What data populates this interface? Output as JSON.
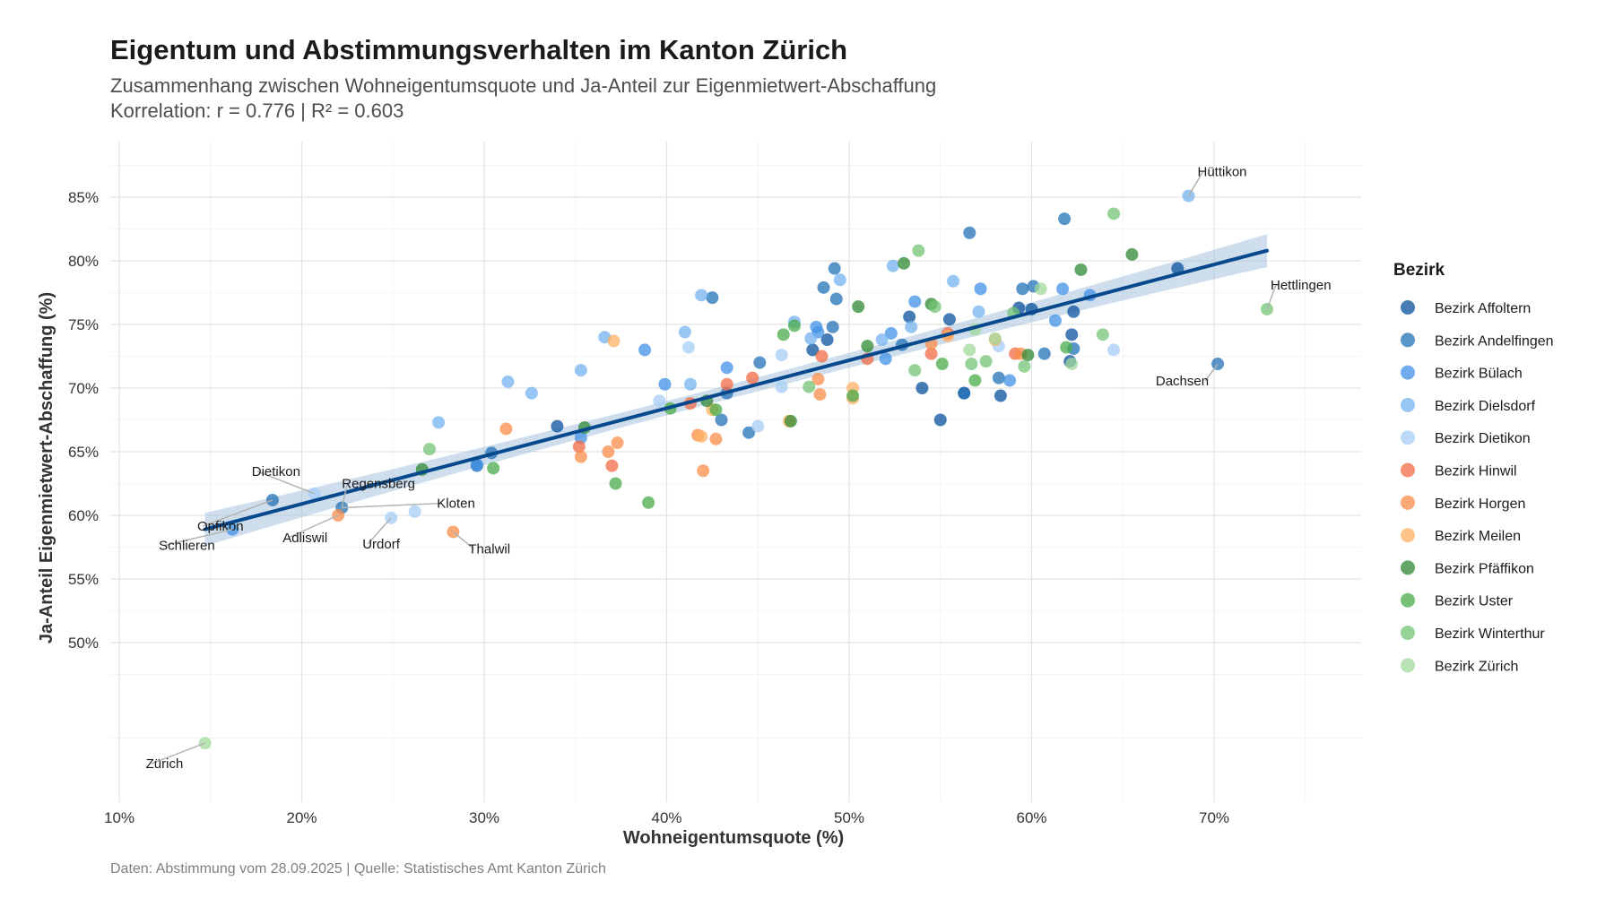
{
  "title": "Eigentum und Abstimmungsverhalten im Kanton Zürich",
  "subtitle_line1": "Zusammenhang zwischen Wohneigentumsquote und Ja-Anteil zur Eigenmietwert-Abschaffung",
  "subtitle_line2": "Korrelation: r = 0.776 | R² = 0.603",
  "caption": "Daten: Abstimmung vom 28.09.2025 | Quelle: Statistisches Amt Kanton Zürich",
  "chart_data": {
    "type": "scatter",
    "title": "Eigentum und Abstimmungsverhalten im Kanton Zürich",
    "xlabel": "Wohneigentumsquote (%)",
    "ylabel": "Ja-Anteil Eigenmietwert-Abschaffung (%)",
    "xlim": [
      9.5,
      78
    ],
    "ylim": [
      40,
      89
    ],
    "x_ticks": [
      10,
      20,
      30,
      40,
      50,
      60,
      70
    ],
    "x_tick_labels": [
      "10%",
      "20%",
      "30%",
      "40%",
      "50%",
      "60%",
      "70%"
    ],
    "y_ticks": [
      50,
      55,
      60,
      65,
      70,
      75,
      80,
      85
    ],
    "y_tick_labels": [
      "50%",
      "55%",
      "60%",
      "65%",
      "70%",
      "75%",
      "80%",
      "85%"
    ],
    "grid": true,
    "legend_title": "Bezirk",
    "legend_position": "right",
    "series": [
      {
        "name": "Bezirk Affoltern",
        "color": "#08519c",
        "points": [
          [
            34,
            67
          ],
          [
            48,
            73
          ],
          [
            48.8,
            73.8
          ],
          [
            53.3,
            75.6
          ],
          [
            54,
            70
          ],
          [
            55,
            67.5
          ],
          [
            55.5,
            75.4
          ],
          [
            56.3,
            69.6
          ],
          [
            58.3,
            69.4
          ],
          [
            59.3,
            76.3
          ],
          [
            60,
            76.2
          ],
          [
            62.1,
            72.1
          ],
          [
            62.2,
            74.2
          ],
          [
            62.3,
            76
          ],
          [
            68,
            79.4
          ]
        ]
      },
      {
        "name": "Bezirk Andelfingen",
        "color": "#2171b5",
        "points": [
          [
            18.4,
            61.2
          ],
          [
            22.2,
            60.6
          ],
          [
            29.6,
            63.9
          ],
          [
            30.4,
            64.9
          ],
          [
            42.5,
            77.1
          ],
          [
            43,
            67.5
          ],
          [
            43.3,
            69.6
          ],
          [
            44.5,
            66.5
          ],
          [
            45.1,
            72
          ],
          [
            48.6,
            77.9
          ],
          [
            49.1,
            74.8
          ],
          [
            49.3,
            77
          ],
          [
            49.2,
            79.4
          ],
          [
            52.9,
            73.4
          ],
          [
            56.3,
            69.6
          ],
          [
            56.6,
            82.2
          ],
          [
            58.2,
            70.8
          ],
          [
            59.5,
            77.8
          ],
          [
            60.1,
            78
          ],
          [
            60.7,
            72.7
          ],
          [
            61.8,
            83.3
          ],
          [
            62.3,
            73.1
          ],
          [
            70.2,
            71.9
          ]
        ]
      },
      {
        "name": "Bezirk Bülach",
        "color": "#4292e6",
        "points": [
          [
            16.2,
            58.9
          ],
          [
            29.6,
            64
          ],
          [
            35.3,
            66.1
          ],
          [
            38.8,
            73
          ],
          [
            39.9,
            70.3
          ],
          [
            43.3,
            71.6
          ],
          [
            48.2,
            74.8
          ],
          [
            48.3,
            74.4
          ],
          [
            52,
            72.3
          ],
          [
            52.3,
            74.3
          ],
          [
            53.6,
            76.8
          ],
          [
            57.2,
            77.8
          ],
          [
            58.8,
            70.6
          ],
          [
            61.3,
            75.3
          ],
          [
            61.7,
            77.8
          ],
          [
            63.2,
            77.3
          ]
        ]
      },
      {
        "name": "Bezirk Dielsdorf",
        "color": "#74b3f0",
        "points": [
          [
            27.5,
            67.3
          ],
          [
            31.3,
            70.5
          ],
          [
            32.6,
            69.6
          ],
          [
            35.3,
            71.4
          ],
          [
            36.6,
            74
          ],
          [
            41,
            74.4
          ],
          [
            41.9,
            77.3
          ],
          [
            41.3,
            70.3
          ],
          [
            47,
            75.2
          ],
          [
            47.9,
            73.9
          ],
          [
            49.5,
            78.5
          ],
          [
            51.8,
            73.8
          ],
          [
            52.4,
            79.6
          ],
          [
            53.4,
            74.8
          ],
          [
            55.7,
            78.4
          ],
          [
            57.1,
            76
          ],
          [
            68.6,
            85.1
          ]
        ]
      },
      {
        "name": "Bezirk Dietikon",
        "color": "#a6cdf5",
        "points": [
          [
            20.7,
            61.7
          ],
          [
            24.9,
            59.8
          ],
          [
            26.2,
            60.3
          ],
          [
            39.6,
            69
          ],
          [
            41.2,
            73.2
          ],
          [
            45,
            67
          ],
          [
            46.3,
            70.1
          ],
          [
            46.3,
            72.6
          ],
          [
            58.2,
            73.3
          ],
          [
            64.5,
            73
          ]
        ]
      },
      {
        "name": "Bezirk Hinwil",
        "color": "#f16b45",
        "points": [
          [
            35.2,
            65.4
          ],
          [
            37,
            63.9
          ],
          [
            41.3,
            68.8
          ],
          [
            43.3,
            70.3
          ],
          [
            44.7,
            70.8
          ],
          [
            48.5,
            72.5
          ],
          [
            51,
            72.3
          ],
          [
            54.5,
            72.7
          ],
          [
            55.4,
            74.3
          ],
          [
            59.1,
            72.7
          ]
        ]
      },
      {
        "name": "Bezirk Horgen",
        "color": "#f98d4a",
        "points": [
          [
            22,
            60
          ],
          [
            28.3,
            58.7
          ],
          [
            31.2,
            66.8
          ],
          [
            35.3,
            64.6
          ],
          [
            36.8,
            65
          ],
          [
            37.3,
            65.7
          ],
          [
            41.7,
            66.3
          ],
          [
            42,
            63.5
          ],
          [
            42.7,
            66
          ],
          [
            48.3,
            70.7
          ],
          [
            48.4,
            69.5
          ],
          [
            54.5,
            73.5
          ],
          [
            59.4,
            72.7
          ]
        ]
      },
      {
        "name": "Bezirk Meilen",
        "color": "#fdb061",
        "points": [
          [
            37.1,
            73.7
          ],
          [
            41.9,
            66.2
          ],
          [
            42.5,
            68.3
          ],
          [
            46.7,
            67.4
          ],
          [
            50.2,
            69.2
          ],
          [
            50.2,
            70
          ],
          [
            55.4,
            74.1
          ],
          [
            58,
            73.8
          ]
        ]
      },
      {
        "name": "Bezirk Pfäffikon",
        "color": "#2f8a33",
        "points": [
          [
            26.6,
            63.6
          ],
          [
            35.5,
            66.9
          ],
          [
            42.2,
            69
          ],
          [
            46.8,
            67.4
          ],
          [
            50.5,
            76.4
          ],
          [
            51,
            73.3
          ],
          [
            53,
            79.8
          ],
          [
            54.5,
            76.6
          ],
          [
            59.8,
            72.6
          ],
          [
            62.7,
            79.3
          ],
          [
            65.5,
            80.5
          ]
        ]
      },
      {
        "name": "Bezirk Uster",
        "color": "#4aab4a",
        "points": [
          [
            30.5,
            63.7
          ],
          [
            37.2,
            62.5
          ],
          [
            39,
            61
          ],
          [
            40.2,
            68.4
          ],
          [
            42.7,
            68.3
          ],
          [
            46.4,
            74.2
          ],
          [
            47,
            74.9
          ],
          [
            50.2,
            69.4
          ],
          [
            55.1,
            71.9
          ],
          [
            56.9,
            70.6
          ],
          [
            61.9,
            73.2
          ]
        ]
      },
      {
        "name": "Bezirk Winterthur",
        "color": "#74c476",
        "points": [
          [
            27,
            65.2
          ],
          [
            47.8,
            70.1
          ],
          [
            53.6,
            71.4
          ],
          [
            53.8,
            80.8
          ],
          [
            54.7,
            76.4
          ],
          [
            56.7,
            71.9
          ],
          [
            57.5,
            72.1
          ],
          [
            59,
            75.9
          ],
          [
            59.6,
            71.7
          ],
          [
            63.9,
            74.2
          ],
          [
            64.5,
            83.7
          ],
          [
            72.9,
            76.2
          ]
        ]
      },
      {
        "name": "Bezirk Zürich",
        "color": "#a1d99b",
        "points": [
          [
            14.7,
            42.1
          ],
          [
            56.6,
            73
          ],
          [
            56.9,
            74.6
          ],
          [
            58,
            73.9
          ],
          [
            60.5,
            77.8
          ],
          [
            62.2,
            71.9
          ]
        ]
      }
    ],
    "trend_line": {
      "x": [
        14.7,
        72.9
      ],
      "y": [
        58.9,
        80.8
      ],
      "ci_half_width_ends": 1.3,
      "ci_half_width_center": 0.55,
      "color": "#08488c"
    },
    "annotations": [
      {
        "text": "Hüttikon",
        "x": 68.6,
        "y": 85.1
      },
      {
        "text": "Hettlingen",
        "x": 72.9,
        "y": 76.2
      },
      {
        "text": "Dachsen",
        "x": 70.2,
        "y": 71.9
      },
      {
        "text": "Dietikon",
        "x": 20.7,
        "y": 61.7
      },
      {
        "text": "Regensberg",
        "x": 22.2,
        "y": 60.6
      },
      {
        "text": "Opfikon",
        "x": 18.4,
        "y": 61.2
      },
      {
        "text": "Kloten",
        "x": 22.2,
        "y": 60.6
      },
      {
        "text": "Schlieren",
        "x": 16.2,
        "y": 58.9
      },
      {
        "text": "Adliswil",
        "x": 22,
        "y": 60
      },
      {
        "text": "Urdorf",
        "x": 24.9,
        "y": 59.8
      },
      {
        "text": "Thalwil",
        "x": 28.3,
        "y": 58.7
      },
      {
        "text": "Zürich",
        "x": 14.7,
        "y": 42.1
      }
    ]
  }
}
